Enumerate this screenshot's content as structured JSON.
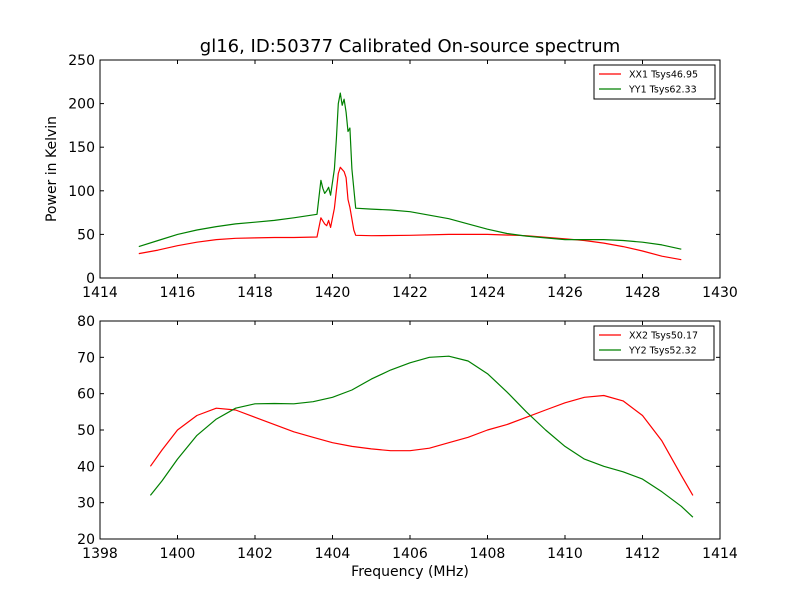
{
  "figure": {
    "title": "gl16, ID:50377 Calibrated On-source spectrum",
    "colors": {
      "red": "#ff0000",
      "green": "#008000",
      "axes": "#000000",
      "background": "#ffffff"
    }
  },
  "chart_data": [
    {
      "type": "line",
      "title": "gl16, ID:50377 Calibrated On-source spectrum",
      "xlabel": "",
      "ylabel": "Power in Kelvin",
      "xlim": [
        1414,
        1430
      ],
      "ylim": [
        0,
        250
      ],
      "xticks": [
        1414,
        1416,
        1418,
        1420,
        1422,
        1424,
        1426,
        1428,
        1430
      ],
      "yticks": [
        0,
        50,
        100,
        150,
        200,
        250
      ],
      "grid": false,
      "legend_position": "top-right",
      "series": [
        {
          "name": "XX1 Tsys46.95",
          "color": "#ff0000",
          "points": [
            [
              1415.0,
              28
            ],
            [
              1415.5,
              32
            ],
            [
              1416.0,
              37
            ],
            [
              1416.5,
              41
            ],
            [
              1417.0,
              44
            ],
            [
              1417.5,
              45.5
            ],
            [
              1418.0,
              46
            ],
            [
              1418.5,
              46.5
            ],
            [
              1419.0,
              46.5
            ],
            [
              1419.6,
              47
            ],
            [
              1419.7,
              69
            ],
            [
              1419.8,
              62
            ],
            [
              1419.85,
              60
            ],
            [
              1419.9,
              66
            ],
            [
              1419.95,
              58
            ],
            [
              1420.05,
              80
            ],
            [
              1420.15,
              120
            ],
            [
              1420.2,
              127
            ],
            [
              1420.3,
              122
            ],
            [
              1420.35,
              115
            ],
            [
              1420.4,
              90
            ],
            [
              1420.45,
              81
            ],
            [
              1420.55,
              55
            ],
            [
              1420.6,
              49
            ],
            [
              1421.0,
              48.5
            ],
            [
              1422.0,
              49
            ],
            [
              1423.0,
              50
            ],
            [
              1424.0,
              50
            ],
            [
              1425.0,
              48.5
            ],
            [
              1426.0,
              45
            ],
            [
              1426.5,
              43
            ],
            [
              1427.0,
              40
            ],
            [
              1427.5,
              36
            ],
            [
              1428.0,
              31
            ],
            [
              1428.5,
              25
            ],
            [
              1429.0,
              21
            ]
          ]
        },
        {
          "name": "YY1 Tsys62.33",
          "color": "#008000",
          "points": [
            [
              1415.0,
              36
            ],
            [
              1415.5,
              43
            ],
            [
              1416.0,
              50
            ],
            [
              1416.5,
              55
            ],
            [
              1417.0,
              59
            ],
            [
              1417.5,
              62
            ],
            [
              1418.0,
              64
            ],
            [
              1418.5,
              66
            ],
            [
              1419.0,
              69
            ],
            [
              1419.6,
              73
            ],
            [
              1419.7,
              112
            ],
            [
              1419.75,
              103
            ],
            [
              1419.8,
              97
            ],
            [
              1419.85,
              100
            ],
            [
              1419.9,
              104
            ],
            [
              1419.95,
              95
            ],
            [
              1420.05,
              125
            ],
            [
              1420.1,
              160
            ],
            [
              1420.15,
              200
            ],
            [
              1420.2,
              212
            ],
            [
              1420.25,
              198
            ],
            [
              1420.3,
              205
            ],
            [
              1420.35,
              190
            ],
            [
              1420.4,
              168
            ],
            [
              1420.45,
              172
            ],
            [
              1420.5,
              125
            ],
            [
              1420.6,
              80
            ],
            [
              1421.0,
              79
            ],
            [
              1421.5,
              78
            ],
            [
              1422.0,
              76
            ],
            [
              1422.5,
              72
            ],
            [
              1423.0,
              68
            ],
            [
              1423.5,
              62
            ],
            [
              1424.0,
              56
            ],
            [
              1424.5,
              51
            ],
            [
              1425.0,
              48
            ],
            [
              1425.5,
              46
            ],
            [
              1426.0,
              44
            ],
            [
              1427.0,
              44
            ],
            [
              1427.5,
              43
            ],
            [
              1428.0,
              41
            ],
            [
              1428.5,
              38
            ],
            [
              1429.0,
              33
            ]
          ]
        }
      ]
    },
    {
      "type": "line",
      "title": "",
      "xlabel": "Frequency (MHz)",
      "ylabel": "",
      "xlim": [
        1398,
        1414
      ],
      "ylim": [
        20,
        80
      ],
      "xticks": [
        1398,
        1400,
        1402,
        1404,
        1406,
        1408,
        1410,
        1412,
        1414
      ],
      "yticks": [
        20,
        30,
        40,
        50,
        60,
        70,
        80
      ],
      "grid": false,
      "legend_position": "top-right",
      "series": [
        {
          "name": "XX2 Tsys50.17",
          "color": "#ff0000",
          "points": [
            [
              1399.3,
              40
            ],
            [
              1399.6,
              44.5
            ],
            [
              1400.0,
              50
            ],
            [
              1400.5,
              54
            ],
            [
              1401.0,
              56
            ],
            [
              1401.5,
              55.5
            ],
            [
              1402.0,
              53.5
            ],
            [
              1402.5,
              51.5
            ],
            [
              1403.0,
              49.5
            ],
            [
              1403.5,
              48
            ],
            [
              1404.0,
              46.5
            ],
            [
              1404.5,
              45.5
            ],
            [
              1405.0,
              44.8
            ],
            [
              1405.5,
              44.3
            ],
            [
              1406.0,
              44.3
            ],
            [
              1406.5,
              45
            ],
            [
              1407.0,
              46.5
            ],
            [
              1407.5,
              48
            ],
            [
              1408.0,
              50
            ],
            [
              1408.5,
              51.5
            ],
            [
              1409.0,
              53.5
            ],
            [
              1409.5,
              55.5
            ],
            [
              1410.0,
              57.5
            ],
            [
              1410.5,
              59
            ],
            [
              1411.0,
              59.5
            ],
            [
              1411.5,
              58
            ],
            [
              1412.0,
              54
            ],
            [
              1412.5,
              47
            ],
            [
              1413.0,
              37.5
            ],
            [
              1413.3,
              32
            ]
          ]
        },
        {
          "name": "YY2 Tsys52.32",
          "color": "#008000",
          "points": [
            [
              1399.3,
              32
            ],
            [
              1399.6,
              36
            ],
            [
              1400.0,
              42
            ],
            [
              1400.5,
              48.5
            ],
            [
              1401.0,
              53
            ],
            [
              1401.5,
              56
            ],
            [
              1402.0,
              57.2
            ],
            [
              1402.5,
              57.3
            ],
            [
              1403.0,
              57.2
            ],
            [
              1403.5,
              57.8
            ],
            [
              1404.0,
              59
            ],
            [
              1404.5,
              61
            ],
            [
              1405.0,
              64
            ],
            [
              1405.5,
              66.5
            ],
            [
              1406.0,
              68.5
            ],
            [
              1406.5,
              70
            ],
            [
              1407.0,
              70.3
            ],
            [
              1407.5,
              69
            ],
            [
              1408.0,
              65.5
            ],
            [
              1408.5,
              60.5
            ],
            [
              1409.0,
              55
            ],
            [
              1409.5,
              50
            ],
            [
              1410.0,
              45.5
            ],
            [
              1410.5,
              42
            ],
            [
              1411.0,
              40
            ],
            [
              1411.5,
              38.5
            ],
            [
              1412.0,
              36.5
            ],
            [
              1412.5,
              33
            ],
            [
              1413.0,
              29
            ],
            [
              1413.3,
              26
            ]
          ]
        }
      ]
    }
  ]
}
